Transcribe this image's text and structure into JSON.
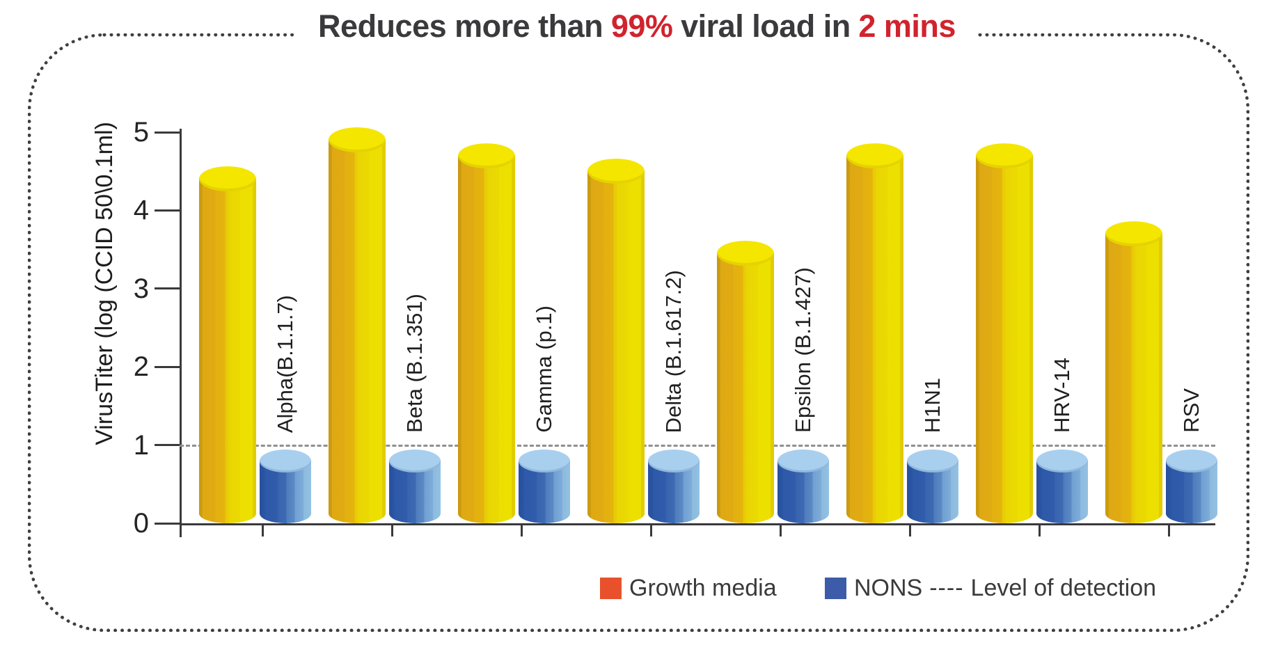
{
  "title": {
    "part1": "Reduces more than",
    "highlight_pct": "99%",
    "part2": "viral load in",
    "highlight_time": "2 mins"
  },
  "legend": {
    "growth_media_label": "Growth media",
    "nons_label": "NONS",
    "detection_dashes": "----",
    "detection_label": "Level of detection"
  },
  "colors": {
    "title_text": "#3a3a3c",
    "title_accent_red": "#d1232e",
    "legend_growth_swatch": "#e8512c",
    "legend_nons_swatch": "#3c5ba8",
    "growth_bar_body": "#e3b010",
    "growth_bar_cap": "#f5e600",
    "nons_bar_body": "#3863ae",
    "nons_bar_cap": "#a9cfee",
    "axis": "#3a3a3c",
    "detection_line": "#8f8f8f",
    "frame_border": "#3f3f41"
  },
  "chart_data": {
    "type": "bar",
    "categories": [
      "Alpha(B.1.1.7)",
      "Beta (B.1.351)",
      "Gamma (p.1)",
      "Delta (B.1.617.2)",
      "Epsilon (B.1.427)",
      "H1N1",
      "HRV-14",
      "RSV"
    ],
    "series": [
      {
        "name": "Growth media",
        "values": [
          4.4,
          4.9,
          4.7,
          4.5,
          3.45,
          4.7,
          4.7,
          3.7
        ]
      },
      {
        "name": "NONS",
        "values": [
          0.8,
          0.8,
          0.8,
          0.8,
          0.8,
          0.8,
          0.8,
          0.8
        ]
      }
    ],
    "title": "Reduces more than 99% viral load in 2 mins",
    "xlabel": "",
    "ylabel": "VirusTiter  (log (CCID 50\\0.1ml)",
    "yticks": [
      0,
      1,
      2,
      3,
      4,
      5
    ],
    "ylim": [
      0,
      5
    ],
    "level_of_detection": 1,
    "grid": false,
    "legend_position": "bottom"
  }
}
